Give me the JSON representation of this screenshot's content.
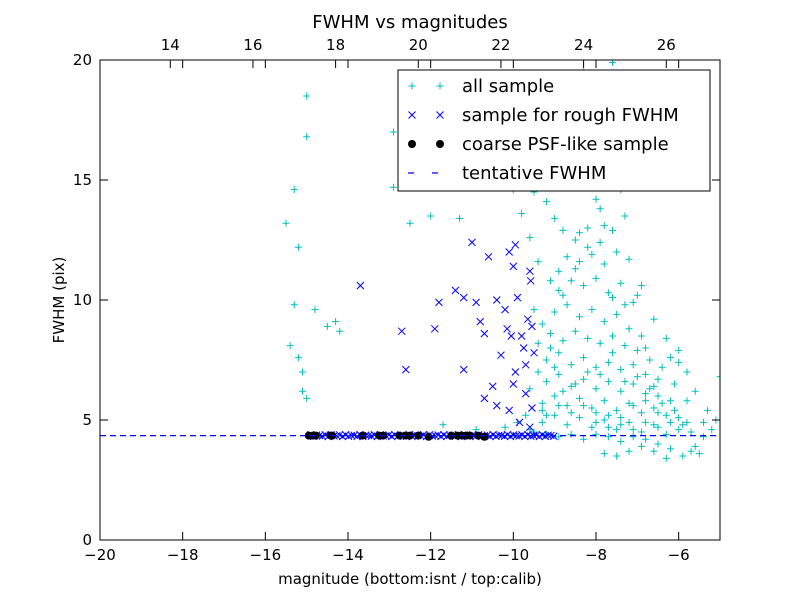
{
  "chart_data": {
    "type": "scatter",
    "title": "FWHM vs magnitudes",
    "xlabel": "magnitude (bottom:isnt / top:calib)",
    "ylabel": "FWHM (pix)",
    "xlim": [
      -20,
      -5
    ],
    "ylim": [
      0,
      20
    ],
    "x_ticks": [
      -20,
      -18,
      -16,
      -14,
      -12,
      -10,
      -8,
      -6
    ],
    "y_ticks": [
      0,
      5,
      10,
      15,
      20
    ],
    "top_axis": {
      "offset": 32.3,
      "ticks": [
        14,
        16,
        18,
        20,
        22,
        24,
        26
      ]
    },
    "tentative_fwhm": 4.35,
    "legend_position": "top-right",
    "legend": [
      {
        "label": "all sample",
        "marker": "plus",
        "color": "#00bfbf"
      },
      {
        "label": "sample for rough FWHM",
        "marker": "x",
        "color": "#0000ff"
      },
      {
        "label": "coarse PSF-like sample",
        "marker": "dot",
        "color": "#000000"
      },
      {
        "label": "tentative FWHM",
        "marker": "dash",
        "color": "#0000ff"
      }
    ],
    "series": [
      {
        "name": "coarse PSF-like sample",
        "points": [
          [
            -14.95,
            4.35
          ],
          [
            -14.85,
            4.35
          ],
          [
            -14.78,
            4.35
          ],
          [
            -14.42,
            4.35
          ],
          [
            -14.38,
            4.35
          ],
          [
            -13.65,
            4.35
          ],
          [
            -13.25,
            4.35
          ],
          [
            -13.15,
            4.35
          ],
          [
            -12.75,
            4.35
          ],
          [
            -12.6,
            4.35
          ],
          [
            -12.5,
            4.35
          ],
          [
            -12.3,
            4.35
          ],
          [
            -12.05,
            4.3
          ],
          [
            -11.5,
            4.35
          ],
          [
            -11.35,
            4.35
          ],
          [
            -11.25,
            4.35
          ],
          [
            -11.15,
            4.35
          ],
          [
            -11.05,
            4.35
          ],
          [
            -10.85,
            4.35
          ],
          [
            -10.7,
            4.3
          ]
        ]
      },
      {
        "name": "sample for rough FWHM",
        "points": [
          [
            -13.7,
            10.6
          ],
          [
            -12.7,
            8.7
          ],
          [
            -12.6,
            7.1
          ],
          [
            -11.9,
            8.8
          ],
          [
            -11.8,
            9.9
          ],
          [
            -11.4,
            10.4
          ],
          [
            -11.2,
            10.1
          ],
          [
            -11.0,
            12.4
          ],
          [
            -11.2,
            7.1
          ],
          [
            -10.9,
            9.9
          ],
          [
            -10.8,
            9.1
          ],
          [
            -10.7,
            8.6
          ],
          [
            -10.6,
            11.8
          ],
          [
            -10.4,
            10.0
          ],
          [
            -10.5,
            6.4
          ],
          [
            -10.3,
            7.7
          ],
          [
            -10.1,
            12.0
          ],
          [
            -10.0,
            11.4
          ],
          [
            -9.9,
            10.1
          ],
          [
            -9.8,
            8.5
          ],
          [
            -9.7,
            6.1
          ],
          [
            -9.6,
            11.2
          ],
          [
            -9.55,
            5.5
          ],
          [
            -9.5,
            7.8
          ],
          [
            -10.05,
            8.5
          ],
          [
            -9.75,
            8.0
          ],
          [
            -10.2,
            9.6
          ],
          [
            -10.7,
            5.9
          ],
          [
            -10.4,
            5.6
          ],
          [
            -10.1,
            5.4
          ],
          [
            -9.95,
            7.0
          ],
          [
            -9.85,
            4.9
          ],
          [
            -9.65,
            9.2
          ],
          [
            -9.6,
            4.7
          ],
          [
            -9.58,
            10.8
          ],
          [
            -9.95,
            12.3
          ],
          [
            -10.15,
            8.8
          ],
          [
            -9.7,
            7.3
          ],
          [
            -10.0,
            6.5
          ],
          [
            -9.55,
            8.9
          ]
        ]
      },
      {
        "name": "all sample",
        "points": [
          [
            -15.0,
            18.5
          ],
          [
            -15.0,
            16.8
          ],
          [
            -15.3,
            14.6
          ],
          [
            -15.2,
            12.2
          ],
          [
            -15.5,
            13.2
          ],
          [
            -15.3,
            9.8
          ],
          [
            -14.8,
            9.6
          ],
          [
            -14.5,
            8.9
          ],
          [
            -14.3,
            9.1
          ],
          [
            -14.2,
            8.7
          ],
          [
            -15.4,
            8.1
          ],
          [
            -15.2,
            7.6
          ],
          [
            -15.1,
            7.0
          ],
          [
            -15.1,
            6.2
          ],
          [
            -15.0,
            5.9
          ],
          [
            -12.9,
            17.0
          ],
          [
            -12.9,
            14.7
          ],
          [
            -12.4,
            14.8
          ],
          [
            -12.5,
            13.2
          ],
          [
            -12.0,
            13.5
          ],
          [
            -11.3,
            13.4
          ],
          [
            -10.5,
            15.0
          ],
          [
            -10.0,
            14.6
          ],
          [
            -9.5,
            14.5
          ],
          [
            -8.3,
            19.5
          ],
          [
            -7.6,
            19.9
          ],
          [
            -9.6,
            12.6
          ],
          [
            -9.0,
            13.4
          ],
          [
            -8.8,
            12.9
          ],
          [
            -8.5,
            12.5
          ],
          [
            -8.2,
            13.0
          ],
          [
            -7.9,
            13.8
          ],
          [
            -7.6,
            12.9
          ],
          [
            -7.3,
            13.5
          ],
          [
            -8.9,
            11.2
          ],
          [
            -8.7,
            11.8
          ],
          [
            -8.4,
            11.6
          ],
          [
            -8.1,
            11.9
          ],
          [
            -7.8,
            11.5
          ],
          [
            -7.5,
            12.0
          ],
          [
            -7.2,
            11.7
          ],
          [
            -8.9,
            10.4
          ],
          [
            -8.6,
            10.8
          ],
          [
            -8.3,
            10.6
          ],
          [
            -8.0,
            10.9
          ],
          [
            -7.7,
            10.3
          ],
          [
            -7.4,
            10.7
          ],
          [
            -7.1,
            9.9
          ],
          [
            -9.0,
            9.5
          ],
          [
            -8.7,
            9.8
          ],
          [
            -8.4,
            9.3
          ],
          [
            -8.1,
            9.6
          ],
          [
            -7.8,
            9.1
          ],
          [
            -7.5,
            9.4
          ],
          [
            -7.2,
            8.8
          ],
          [
            -6.9,
            8.5
          ],
          [
            -9.1,
            8.6
          ],
          [
            -8.8,
            8.3
          ],
          [
            -8.5,
            8.7
          ],
          [
            -8.2,
            8.4
          ],
          [
            -7.9,
            8.2
          ],
          [
            -7.6,
            8.5
          ],
          [
            -7.3,
            8.1
          ],
          [
            -7.0,
            7.9
          ],
          [
            -6.7,
            7.5
          ],
          [
            -9.2,
            7.5
          ],
          [
            -8.9,
            7.8
          ],
          [
            -8.6,
            7.3
          ],
          [
            -8.3,
            7.6
          ],
          [
            -8.0,
            7.2
          ],
          [
            -7.7,
            7.4
          ],
          [
            -7.4,
            7.1
          ],
          [
            -7.1,
            7.3
          ],
          [
            -6.8,
            6.9
          ],
          [
            -6.5,
            6.7
          ],
          [
            -9.2,
            6.6
          ],
          [
            -8.9,
            6.9
          ],
          [
            -8.6,
            6.4
          ],
          [
            -8.3,
            6.7
          ],
          [
            -8.0,
            6.3
          ],
          [
            -7.7,
            6.6
          ],
          [
            -7.4,
            6.2
          ],
          [
            -7.1,
            6.5
          ],
          [
            -6.8,
            6.1
          ],
          [
            -6.5,
            6.0
          ],
          [
            -6.2,
            5.8
          ],
          [
            -9.3,
            5.7
          ],
          [
            -9.0,
            6.0
          ],
          [
            -8.7,
            5.6
          ],
          [
            -8.4,
            5.9
          ],
          [
            -8.1,
            5.5
          ],
          [
            -7.8,
            5.8
          ],
          [
            -7.5,
            5.4
          ],
          [
            -7.2,
            5.7
          ],
          [
            -6.9,
            5.3
          ],
          [
            -6.6,
            5.5
          ],
          [
            -6.3,
            5.2
          ],
          [
            -6.0,
            5.1
          ],
          [
            -9.3,
            4.9
          ],
          [
            -9.0,
            5.2
          ],
          [
            -8.7,
            4.8
          ],
          [
            -8.4,
            5.1
          ],
          [
            -8.1,
            4.7
          ],
          [
            -7.8,
            5.0
          ],
          [
            -7.5,
            4.6
          ],
          [
            -7.2,
            4.9
          ],
          [
            -6.9,
            4.5
          ],
          [
            -6.6,
            4.8
          ],
          [
            -6.3,
            4.4
          ],
          [
            -6.0,
            4.6
          ],
          [
            -5.7,
            4.5
          ],
          [
            -5.4,
            4.3
          ],
          [
            -9.5,
            4.5
          ],
          [
            -9.2,
            4.4
          ],
          [
            -8.9,
            4.3
          ],
          [
            -8.6,
            4.4
          ],
          [
            -8.3,
            4.2
          ],
          [
            -8.0,
            4.4
          ],
          [
            -7.7,
            4.3
          ],
          [
            -7.4,
            4.1
          ],
          [
            -7.1,
            4.3
          ],
          [
            -6.8,
            4.2
          ],
          [
            -6.5,
            4.0
          ],
          [
            -6.2,
            3.8
          ],
          [
            -5.9,
            3.5
          ],
          [
            -5.6,
            3.9
          ],
          [
            -7.8,
            3.6
          ],
          [
            -7.5,
            3.5
          ],
          [
            -7.2,
            3.7
          ],
          [
            -6.9,
            3.9
          ],
          [
            -6.6,
            3.7
          ],
          [
            -6.3,
            3.4
          ],
          [
            -5.7,
            3.7
          ],
          [
            -5.5,
            3.6
          ],
          [
            -5.0,
            6.8
          ],
          [
            -5.1,
            5.0
          ],
          [
            -5.3,
            5.4
          ],
          [
            -5.8,
            5.8
          ],
          [
            -6.1,
            6.5
          ],
          [
            -6.4,
            7.2
          ],
          [
            -6.6,
            6.4
          ],
          [
            -6.0,
            7.4
          ],
          [
            -5.8,
            7.0
          ],
          [
            -6.2,
            7.6
          ],
          [
            -6.8,
            8.0
          ],
          [
            -7.0,
            10.2
          ],
          [
            -7.3,
            9.8
          ],
          [
            -7.6,
            10.1
          ],
          [
            -7.9,
            12.4
          ],
          [
            -8.2,
            12.2
          ],
          [
            -8.5,
            11.3
          ],
          [
            -8.8,
            10.2
          ],
          [
            -9.1,
            10.8
          ],
          [
            -9.4,
            11.6
          ],
          [
            -9.3,
            9.0
          ],
          [
            -9.1,
            8.0
          ],
          [
            -9.4,
            7.0
          ],
          [
            -9.0,
            7.2
          ],
          [
            -8.8,
            6.2
          ],
          [
            -8.5,
            6.5
          ],
          [
            -8.2,
            7.0
          ],
          [
            -7.9,
            6.9
          ],
          [
            -7.6,
            7.8
          ],
          [
            -7.3,
            6.6
          ],
          [
            -7.0,
            6.8
          ],
          [
            -6.7,
            6.3
          ],
          [
            -6.4,
            5.7
          ],
          [
            -6.1,
            5.4
          ],
          [
            -5.8,
            4.9
          ],
          [
            -7.7,
            5.2
          ],
          [
            -7.4,
            5.1
          ],
          [
            -7.1,
            5.6
          ],
          [
            -6.8,
            5.8
          ],
          [
            -6.5,
            5.3
          ],
          [
            -8.0,
            5.3
          ],
          [
            -8.3,
            5.6
          ],
          [
            -8.6,
            5.3
          ],
          [
            -8.9,
            5.6
          ],
          [
            -9.2,
            5.2
          ],
          [
            -7.7,
            4.7
          ],
          [
            -8.0,
            4.9
          ],
          [
            -7.4,
            4.8
          ],
          [
            -7.1,
            4.6
          ],
          [
            -6.8,
            4.9
          ],
          [
            -6.5,
            4.7
          ],
          [
            -6.2,
            4.9
          ],
          [
            -5.9,
            4.8
          ],
          [
            -8.4,
            12.8
          ],
          [
            -8.0,
            14.2
          ],
          [
            -7.4,
            14.6
          ],
          [
            -8.6,
            16.0
          ],
          [
            -7.2,
            16.5
          ],
          [
            -8.0,
            15.5
          ],
          [
            -9.8,
            13.6
          ],
          [
            -9.2,
            14.1
          ],
          [
            -7.8,
            13.1
          ],
          [
            -6.9,
            10.6
          ],
          [
            -6.6,
            9.2
          ],
          [
            -6.3,
            8.4
          ],
          [
            -6.0,
            7.9
          ],
          [
            -5.6,
            6.2
          ],
          [
            -5.4,
            4.9
          ],
          [
            -5.2,
            4.6
          ],
          [
            -9.6,
            6.3
          ],
          [
            -9.7,
            5.2
          ],
          [
            -9.6,
            4.6
          ],
          [
            -9.4,
            8.2
          ],
          [
            -9.5,
            9.6
          ],
          [
            -11.7,
            4.8
          ],
          [
            -10.9,
            4.6
          ],
          [
            -10.2,
            4.7
          ],
          [
            -9.9,
            4.9
          ],
          [
            -9.3,
            5.4
          ]
        ]
      }
    ]
  }
}
